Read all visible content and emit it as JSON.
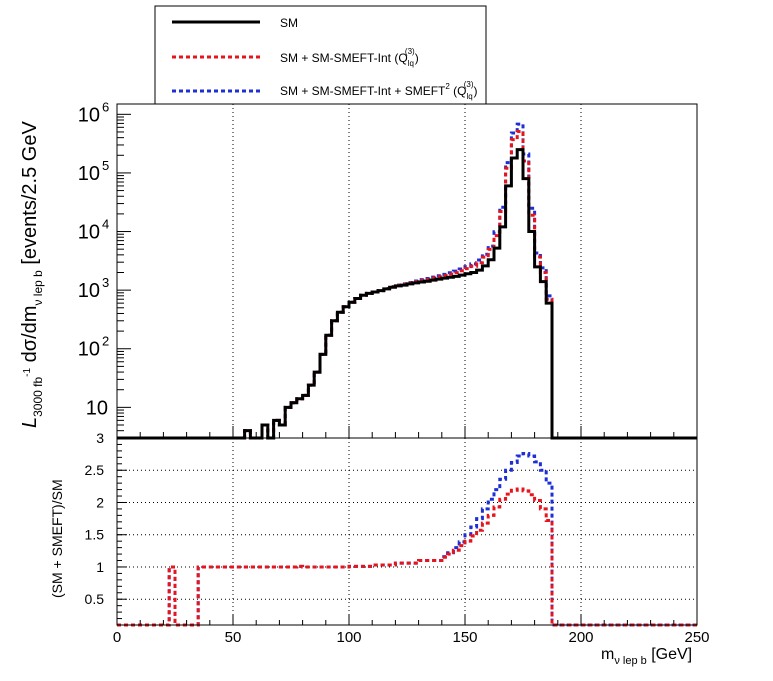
{
  "chart_data": [
    {
      "panel": "upper",
      "type": "line",
      "ylabel": {
        "main": "L",
        "sub": "3000 fb",
        "sup": "-1",
        "rest": " dσ/dm",
        "sub2": "ν lep b",
        "unit": " [events/2.5 GeV"
      },
      "xlim": [
        0,
        250
      ],
      "ylim": [
        3,
        1500000
      ],
      "yscale": "log",
      "grid": "vertical",
      "bin_width": 2.5,
      "yticks": [
        {
          "value": 10,
          "label": "10",
          "exp": ""
        },
        {
          "value": 100,
          "label": "10",
          "exp": "2"
        },
        {
          "value": 1000,
          "label": "10",
          "exp": "3"
        },
        {
          "value": 10000,
          "label": "10",
          "exp": "4"
        },
        {
          "value": 100000,
          "label": "10",
          "exp": "5"
        },
        {
          "value": 1000000,
          "label": "10",
          "exp": "6"
        }
      ],
      "x_bin_edges": [
        52.5,
        55,
        57.5,
        60,
        62.5,
        65,
        67.5,
        70,
        72.5,
        75,
        77.5,
        80,
        82.5,
        85,
        87.5,
        90,
        92.5,
        95,
        97.5,
        100,
        102.5,
        105,
        107.5,
        110,
        112.5,
        115,
        117.5,
        120,
        122.5,
        125,
        127.5,
        130,
        132.5,
        135,
        137.5,
        140,
        142.5,
        145,
        147.5,
        150,
        152.5,
        155,
        157.5,
        160,
        162.5,
        165,
        167.5,
        170,
        172.5,
        175,
        177.5,
        180,
        182.5,
        185,
        187.5
      ],
      "series": [
        {
          "name": "SM",
          "color": "#000000",
          "style": "solid",
          "values": [
            3,
            4,
            3,
            3,
            5,
            3,
            6,
            5,
            10,
            12,
            14,
            16,
            24,
            40,
            80,
            170,
            300,
            420,
            520,
            620,
            720,
            820,
            880,
            930,
            980,
            1050,
            1120,
            1180,
            1220,
            1280,
            1330,
            1380,
            1420,
            1480,
            1540,
            1600,
            1660,
            1720,
            1800,
            1900,
            2000,
            2200,
            2600,
            3300,
            5200,
            12000,
            60000,
            180000,
            250000,
            80000,
            10000,
            2500,
            1400,
            600,
            3
          ]
        },
        {
          "name": "SM + SM-SMEFT-Int (Q_lq^(3))",
          "color": "#e8141b",
          "style": "dashed",
          "values": [
            3,
            4,
            3,
            3,
            5,
            3,
            6,
            5,
            10,
            12,
            14,
            16,
            24,
            40,
            80,
            170,
            300,
            420,
            520,
            620,
            720,
            820,
            880,
            930,
            980,
            1060,
            1140,
            1210,
            1260,
            1330,
            1400,
            1470,
            1530,
            1610,
            1690,
            1780,
            1880,
            1990,
            2140,
            2330,
            2560,
            2950,
            3650,
            4950,
            8500,
            22000,
            120000,
            370000,
            510000,
            160000,
            19000,
            3700,
            2000,
            700,
            3
          ]
        },
        {
          "name": "SM + SM-SMEFT-Int + SMEFT² (Q_lq^(3))",
          "color": "#1f2fd6",
          "style": "dashed",
          "values": [
            3,
            4,
            3,
            3,
            5,
            3,
            6,
            5,
            10,
            12,
            14,
            16,
            24,
            40,
            80,
            170,
            300,
            420,
            520,
            620,
            720,
            820,
            880,
            930,
            980,
            1060,
            1150,
            1220,
            1280,
            1350,
            1430,
            1510,
            1580,
            1670,
            1760,
            1860,
            1980,
            2110,
            2290,
            2520,
            2800,
            3270,
            4100,
            5650,
            9900,
            26000,
            150000,
            480000,
            680000,
            210000,
            25000,
            4300,
            2400,
            800,
            3
          ]
        }
      ],
      "legend": {
        "position": "top-center",
        "entries": [
          {
            "text": "SM"
          },
          {
            "text": "SM + SM-SMEFT-Int (Q",
            "sub": "lq",
            "sup": "(3)",
            "tail": ")"
          },
          {
            "text": "SM + SM-SMEFT-Int + SMEFT",
            "sup0": "2",
            "text2": " (Q",
            "sub": "lq",
            "sup": "(3)",
            "tail": ")"
          }
        ]
      }
    },
    {
      "panel": "lower",
      "type": "line",
      "ylabel": "(SM + SMEFT)/SM",
      "xlabel": {
        "main": "m",
        "sub": "ν lep b",
        "rest": " [GeV]"
      },
      "xlim": [
        0,
        250
      ],
      "ylim": [
        0.1,
        3
      ],
      "grid": "both",
      "xticks": [
        0,
        50,
        100,
        150,
        200,
        250
      ],
      "yticks": [
        0.5,
        1,
        1.5,
        2,
        2.5,
        3
      ],
      "ytick_labels": [
        "0.5",
        "1",
        "1.5",
        "2",
        "2.5",
        "3"
      ],
      "xtick_labels": [
        "0",
        "50",
        "100",
        "150",
        "200",
        "250"
      ],
      "bin_width": 2.5,
      "x_bin_edges": [
        0,
        22.5,
        25,
        35,
        75,
        77.5,
        80,
        100,
        110,
        120,
        130,
        140,
        142.5,
        145,
        147.5,
        150,
        152.5,
        155,
        157.5,
        160,
        162.5,
        165,
        167.5,
        170,
        172.5,
        175,
        177.5,
        180,
        182.5,
        185,
        187.5,
        250
      ],
      "series": [
        {
          "name": "SM + SM-SMEFT-Int (Q_lq^(3))",
          "color": "#e8141b",
          "style": "dashed",
          "values": [
            0.1,
            1,
            0.1,
            1,
            1,
            1.01,
            1,
            1.01,
            1.03,
            1.06,
            1.1,
            1.15,
            1.2,
            1.26,
            1.33,
            1.4,
            1.48,
            1.57,
            1.68,
            1.8,
            1.93,
            2.05,
            2.13,
            2.19,
            2.21,
            2.18,
            2.12,
            2.03,
            1.9,
            1.72,
            0.1
          ]
        },
        {
          "name": "SM + SM-SMEFT-Int + SMEFT² (Q_lq^(3))",
          "color": "#1f2fd6",
          "style": "dashed",
          "values": [
            0.1,
            1,
            0.1,
            1,
            1,
            1.01,
            1,
            1.01,
            1.03,
            1.06,
            1.1,
            1.16,
            1.22,
            1.3,
            1.39,
            1.5,
            1.62,
            1.75,
            1.9,
            2.05,
            2.2,
            2.36,
            2.5,
            2.62,
            2.72,
            2.76,
            2.72,
            2.63,
            2.5,
            2.3,
            0.1
          ]
        }
      ]
    }
  ]
}
